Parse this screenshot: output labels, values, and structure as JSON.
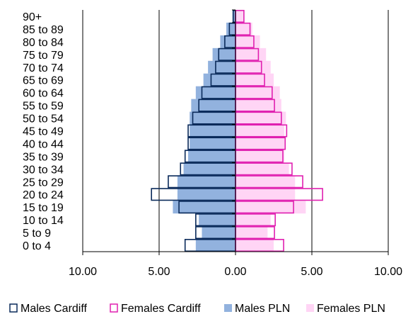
{
  "chart_data": {
    "type": "bar",
    "orientation": "horizontal",
    "layout": "population-pyramid",
    "categories": [
      "0 to 4",
      "5 to 9",
      "10 to 14",
      "15 to 19",
      "20 to 24",
      "25 to 29",
      "30 to 34",
      "35 to 39",
      "40 to 44",
      "45 to 49",
      "50 to 54",
      "55 to 59",
      "60 to 64",
      "65 to 69",
      "70 to 74",
      "75 to 79",
      "80 to 84",
      "85 to 89",
      "90+"
    ],
    "series": [
      {
        "name": "Males Cardiff",
        "side": "left",
        "style": "outline",
        "color": "#0a2a5a",
        "values": [
          3.3,
          2.6,
          2.6,
          3.7,
          5.5,
          4.4,
          3.6,
          3.3,
          3.1,
          3.1,
          2.8,
          2.4,
          2.2,
          1.6,
          1.3,
          1.1,
          0.7,
          0.4,
          0.15
        ]
      },
      {
        "name": "Females Cardiff",
        "side": "right",
        "style": "outline",
        "color": "#e020b0",
        "values": [
          3.15,
          2.55,
          2.6,
          3.8,
          5.7,
          4.4,
          3.7,
          3.1,
          3.25,
          3.35,
          3.0,
          2.55,
          2.4,
          1.9,
          1.7,
          1.5,
          1.2,
          0.95,
          0.55
        ]
      },
      {
        "name": "Males PLN",
        "side": "left",
        "style": "fill",
        "color": "#92b2de",
        "values": [
          2.6,
          2.2,
          2.4,
          4.1,
          3.8,
          3.8,
          3.4,
          3.1,
          3.0,
          3.0,
          3.0,
          2.9,
          2.6,
          2.1,
          1.8,
          1.5,
          1.0,
          0.6,
          0.2
        ]
      },
      {
        "name": "Females PLN",
        "side": "right",
        "style": "fill",
        "color": "#ffd5f5",
        "values": [
          2.5,
          2.1,
          2.3,
          4.6,
          3.9,
          3.9,
          3.5,
          3.2,
          3.2,
          3.2,
          3.3,
          3.0,
          2.9,
          2.5,
          2.3,
          2.0,
          1.6,
          1.1,
          0.5
        ]
      }
    ],
    "xlim": [
      -10,
      10
    ],
    "x_ticks": [
      -10,
      -5,
      0,
      5,
      10
    ],
    "x_tick_labels": [
      "10.00",
      "5.00",
      "0.00",
      "5.00",
      "10.00"
    ],
    "grid": "vertical",
    "legend_position": "bottom",
    "title": "",
    "xlabel": "",
    "ylabel": ""
  }
}
